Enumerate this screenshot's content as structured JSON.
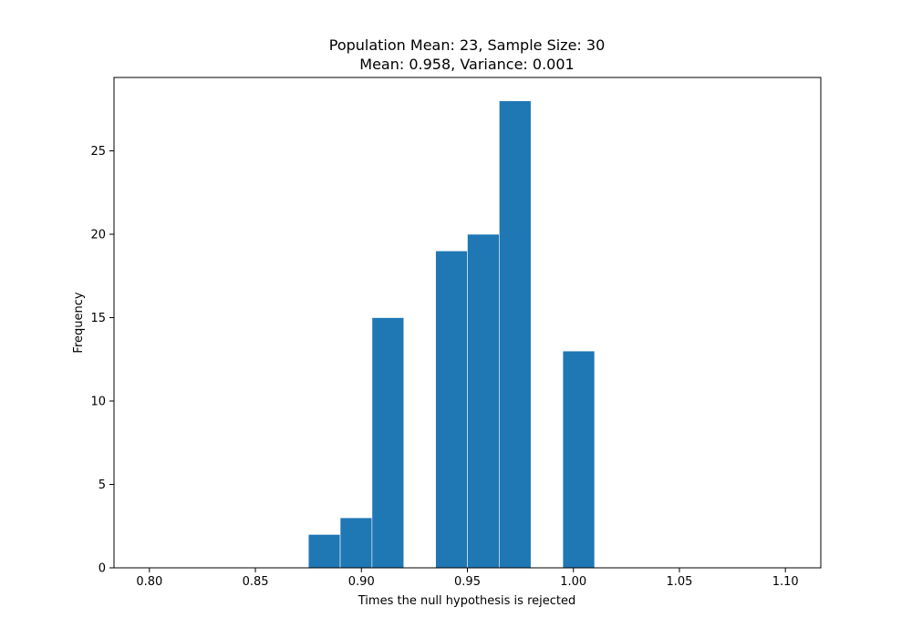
{
  "chart_data": {
    "type": "bar",
    "title": "Population Mean: 23, Sample Size: 30",
    "subtitle": "Mean: 0.958, Variance: 0.001",
    "xlabel": "Times the null hypothesis is rejected",
    "ylabel": "Frequency",
    "xlim": [
      0.7833,
      1.1167
    ],
    "ylim": [
      0,
      29.4
    ],
    "grid": false,
    "x_ticks": [
      0.8,
      0.85,
      0.9,
      0.95,
      1.0,
      1.05,
      1.1
    ],
    "x_tick_labels": [
      "0.80",
      "0.85",
      "0.90",
      "0.95",
      "1.00",
      "1.05",
      "1.10"
    ],
    "y_ticks": [
      0,
      5,
      10,
      15,
      20,
      25
    ],
    "y_tick_labels": [
      "0",
      "5",
      "10",
      "15",
      "20",
      "25"
    ],
    "bar_color": "#1f77b4",
    "bins": [
      {
        "x0": 0.875,
        "x1": 0.89,
        "count": 2
      },
      {
        "x0": 0.89,
        "x1": 0.905,
        "count": 3
      },
      {
        "x0": 0.905,
        "x1": 0.92,
        "count": 15
      },
      {
        "x0": 0.935,
        "x1": 0.95,
        "count": 19
      },
      {
        "x0": 0.95,
        "x1": 0.965,
        "count": 20
      },
      {
        "x0": 0.965,
        "x1": 0.98,
        "count": 28
      },
      {
        "x0": 0.995,
        "x1": 1.01,
        "count": 13
      }
    ]
  }
}
